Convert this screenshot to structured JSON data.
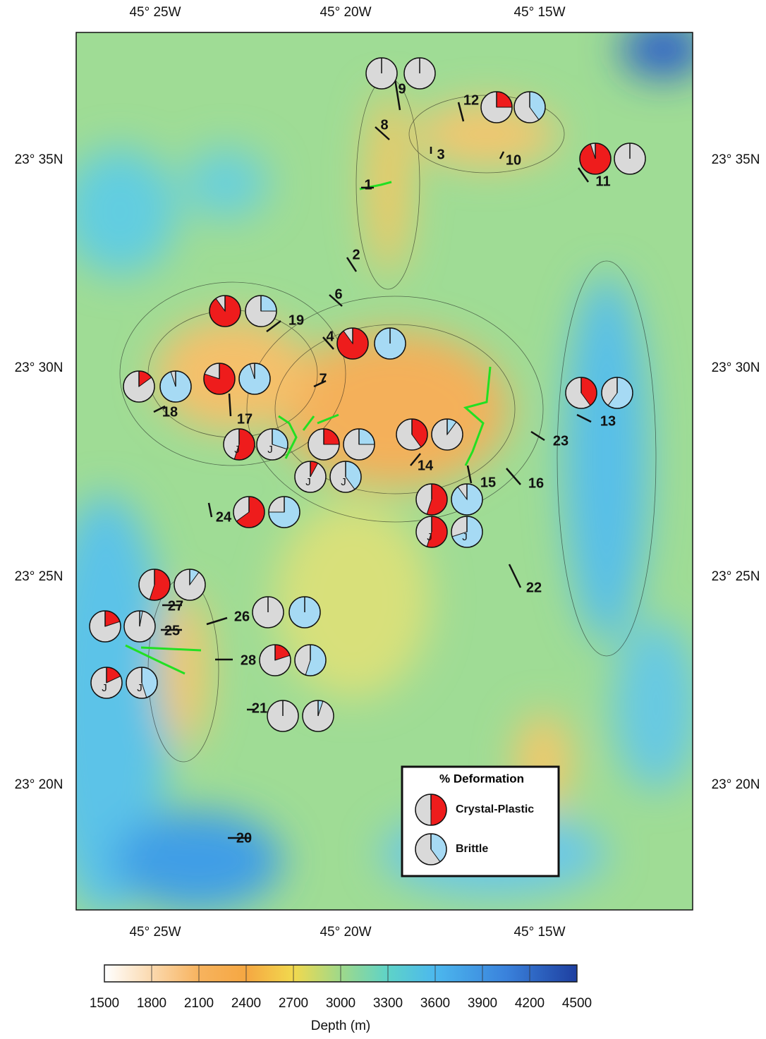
{
  "map": {
    "lon_labels": [
      "45° 25W",
      "45° 20W",
      "45° 15W"
    ],
    "lat_labels": [
      "23° 35N",
      "23° 30N",
      "23° 25N",
      "23° 20N"
    ],
    "sites": [
      "9",
      "12",
      "8",
      "3",
      "10",
      "11",
      "1",
      "2",
      "6",
      "19",
      "4",
      "7",
      "18",
      "17",
      "13",
      "23",
      "14",
      "15",
      "16",
      "24",
      "22",
      "27",
      "26",
      "25",
      "28",
      "21",
      "20"
    ],
    "crystal_plastic": [
      0,
      25,
      95,
      90,
      90,
      15,
      80,
      40,
      55,
      25,
      8,
      40,
      55,
      55,
      65,
      55,
      0,
      20,
      20,
      18,
      0
    ],
    "brittle": [
      0,
      40,
      0,
      25,
      100,
      95,
      95,
      60,
      30,
      25,
      40,
      10,
      90,
      70,
      75,
      10,
      100,
      3,
      55,
      45,
      5
    ],
    "pie_tag": "J",
    "legend": {
      "title": "% Deformation",
      "items": [
        {
          "name": "Crystal-Plastic",
          "color": "#ee1c1c",
          "example": 50
        },
        {
          "name": "Brittle",
          "color": "#a6daf4",
          "example": 40
        }
      ]
    },
    "colorbar": {
      "label": "Depth (m)",
      "range": [
        1500,
        4500
      ],
      "ticks": [
        1500,
        1800,
        2100,
        2400,
        2700,
        3000,
        3300,
        3600,
        3900,
        4200,
        4500
      ]
    }
  }
}
